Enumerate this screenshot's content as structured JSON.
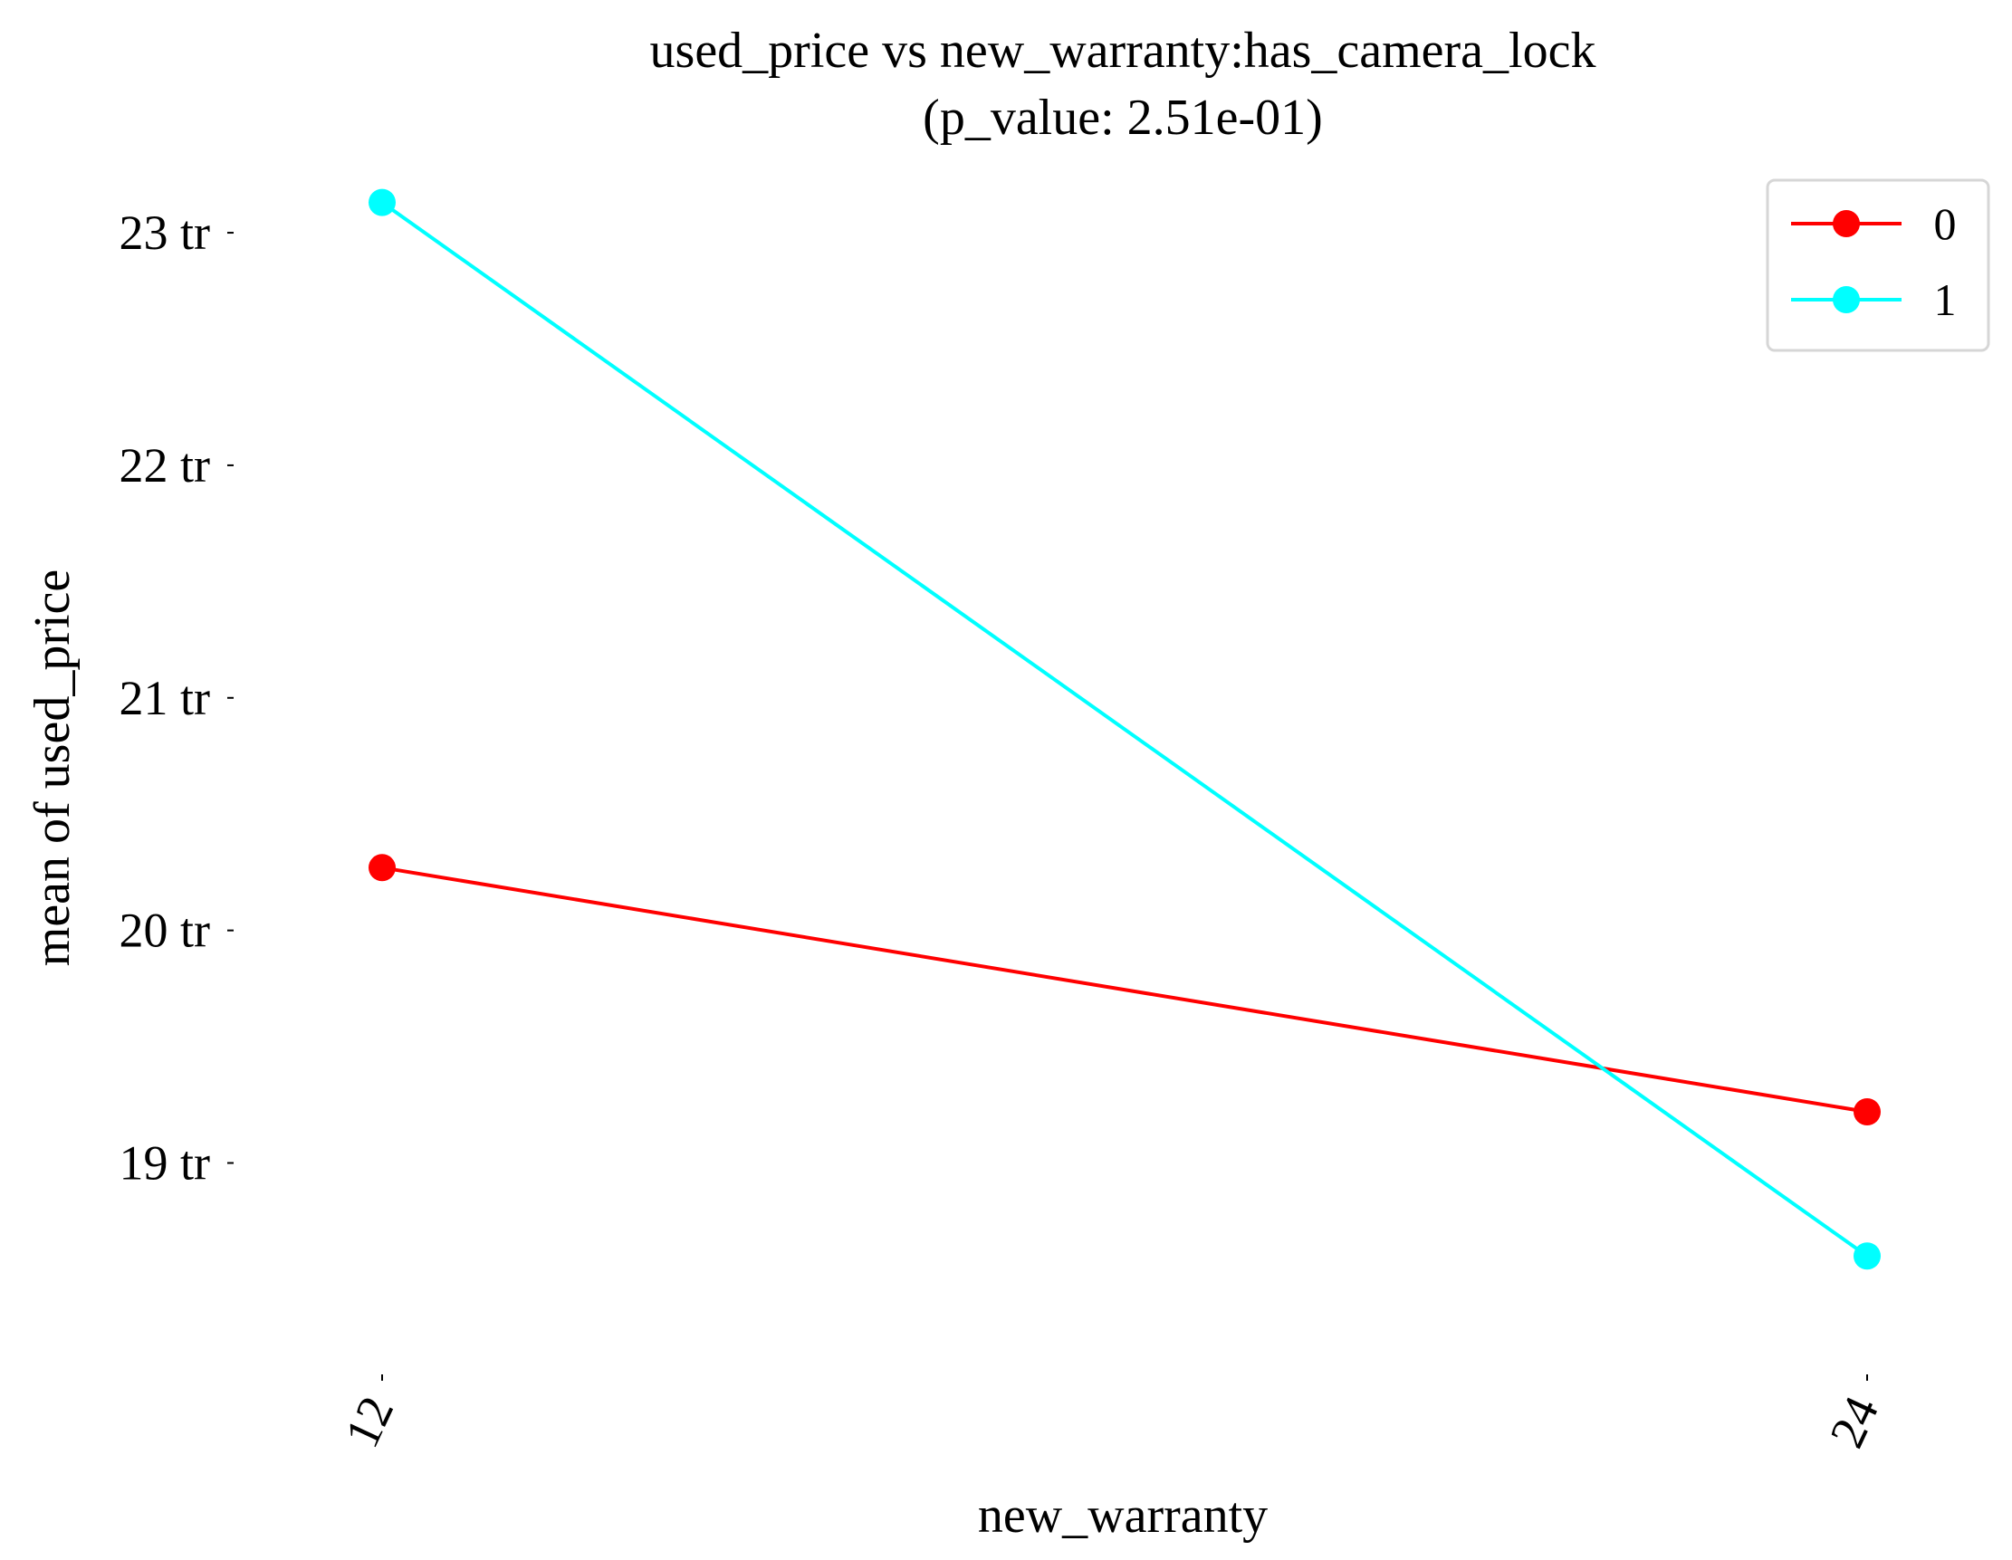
{
  "chart_data": {
    "type": "line",
    "title": "used_price vs new_warranty:has_camera_lock",
    "subtitle": "(p_value: 2.51e-01)",
    "xlabel": "new_warranty",
    "ylabel": "mean of used_price",
    "categories": [
      "12",
      "24"
    ],
    "y_ticks": [
      19,
      20,
      21,
      22,
      23
    ],
    "y_tick_labels": [
      "19 tr",
      "20 tr",
      "21 tr",
      "22 tr",
      "23 tr"
    ],
    "ylim": [
      18.2,
      23.3
    ],
    "grid": false,
    "legend_position": "top-right",
    "series": [
      {
        "name": "0",
        "color": "#ff0000",
        "values": [
          20.27,
          19.22
        ]
      },
      {
        "name": "1",
        "color": "#00ffff",
        "values": [
          23.13,
          18.6
        ]
      }
    ]
  }
}
